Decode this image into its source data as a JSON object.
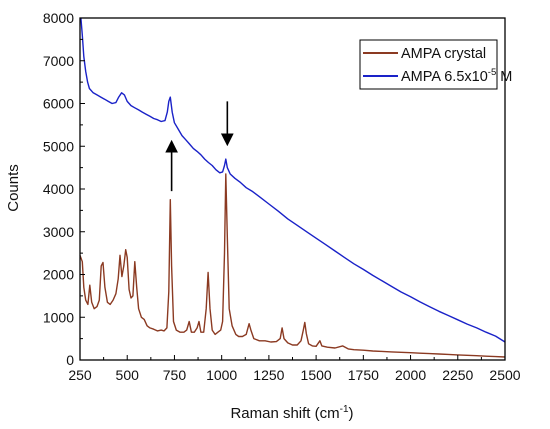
{
  "chart_data": {
    "type": "line",
    "title": "",
    "xlabel": {
      "base": "Raman shift (cm",
      "sup": "-1",
      "tail": ")"
    },
    "ylabel": "Counts",
    "xlim": [
      250,
      2500
    ],
    "ylim": [
      0,
      8000
    ],
    "x_ticks": [
      250,
      500,
      750,
      1000,
      1250,
      1500,
      1750,
      2000,
      2250,
      2500
    ],
    "y_ticks": [
      0,
      1000,
      2000,
      3000,
      4000,
      5000,
      6000,
      7000,
      8000
    ],
    "grid": false,
    "legend_position": "top-right",
    "legend": [
      {
        "series": "crystal",
        "text": "AMPA crystal"
      },
      {
        "series": "solution",
        "text_before": "AMPA 6.5x10",
        "sup": "-5",
        "text_after": " M"
      }
    ],
    "series": [
      {
        "name": "AMPA crystal",
        "key": "crystal",
        "color": "#8b3a22",
        "points": [
          [
            250,
            2450
          ],
          [
            262,
            2300
          ],
          [
            270,
            1700
          ],
          [
            280,
            1400
          ],
          [
            292,
            1300
          ],
          [
            302,
            1750
          ],
          [
            312,
            1350
          ],
          [
            325,
            1200
          ],
          [
            340,
            1250
          ],
          [
            352,
            1400
          ],
          [
            362,
            2200
          ],
          [
            372,
            2280
          ],
          [
            382,
            1700
          ],
          [
            395,
            1350
          ],
          [
            410,
            1300
          ],
          [
            425,
            1400
          ],
          [
            440,
            1550
          ],
          [
            452,
            1900
          ],
          [
            462,
            2450
          ],
          [
            472,
            1950
          ],
          [
            482,
            2200
          ],
          [
            492,
            2580
          ],
          [
            500,
            2400
          ],
          [
            510,
            1650
          ],
          [
            520,
            1450
          ],
          [
            530,
            1500
          ],
          [
            540,
            2300
          ],
          [
            550,
            1700
          ],
          [
            560,
            1200
          ],
          [
            575,
            1000
          ],
          [
            590,
            950
          ],
          [
            605,
            800
          ],
          [
            620,
            750
          ],
          [
            640,
            720
          ],
          [
            660,
            680
          ],
          [
            680,
            700
          ],
          [
            695,
            680
          ],
          [
            710,
            750
          ],
          [
            720,
            1600
          ],
          [
            728,
            3750
          ],
          [
            735,
            2200
          ],
          [
            745,
            900
          ],
          [
            760,
            700
          ],
          [
            780,
            650
          ],
          [
            800,
            650
          ],
          [
            815,
            700
          ],
          [
            828,
            900
          ],
          [
            840,
            650
          ],
          [
            855,
            650
          ],
          [
            870,
            750
          ],
          [
            880,
            900
          ],
          [
            890,
            650
          ],
          [
            905,
            650
          ],
          [
            918,
            1200
          ],
          [
            928,
            2050
          ],
          [
            938,
            1200
          ],
          [
            950,
            700
          ],
          [
            965,
            600
          ],
          [
            980,
            650
          ],
          [
            995,
            700
          ],
          [
            1005,
            900
          ],
          [
            1015,
            2500
          ],
          [
            1022,
            4350
          ],
          [
            1030,
            2900
          ],
          [
            1040,
            1200
          ],
          [
            1055,
            800
          ],
          [
            1075,
            600
          ],
          [
            1090,
            550
          ],
          [
            1110,
            550
          ],
          [
            1130,
            600
          ],
          [
            1145,
            850
          ],
          [
            1155,
            700
          ],
          [
            1170,
            500
          ],
          [
            1200,
            450
          ],
          [
            1230,
            450
          ],
          [
            1260,
            420
          ],
          [
            1290,
            430
          ],
          [
            1310,
            500
          ],
          [
            1320,
            750
          ],
          [
            1330,
            500
          ],
          [
            1350,
            400
          ],
          [
            1375,
            350
          ],
          [
            1400,
            350
          ],
          [
            1420,
            450
          ],
          [
            1432,
            700
          ],
          [
            1440,
            880
          ],
          [
            1448,
            620
          ],
          [
            1460,
            380
          ],
          [
            1480,
            330
          ],
          [
            1500,
            320
          ],
          [
            1520,
            450
          ],
          [
            1530,
            330
          ],
          [
            1560,
            300
          ],
          [
            1600,
            280
          ],
          [
            1640,
            330
          ],
          [
            1670,
            260
          ],
          [
            1700,
            240
          ],
          [
            1750,
            230
          ],
          [
            1800,
            210
          ],
          [
            1850,
            200
          ],
          [
            1900,
            190
          ],
          [
            1950,
            180
          ],
          [
            2000,
            170
          ],
          [
            2050,
            160
          ],
          [
            2100,
            150
          ],
          [
            2150,
            140
          ],
          [
            2200,
            130
          ],
          [
            2250,
            120
          ],
          [
            2300,
            110
          ],
          [
            2350,
            100
          ],
          [
            2400,
            90
          ],
          [
            2450,
            80
          ],
          [
            2500,
            70
          ]
        ]
      },
      {
        "name": "AMPA 6.5x10-5 M",
        "key": "solution",
        "color": "#1a22c8",
        "points": [
          [
            255,
            8000
          ],
          [
            262,
            7600
          ],
          [
            270,
            7100
          ],
          [
            280,
            6750
          ],
          [
            290,
            6500
          ],
          [
            300,
            6350
          ],
          [
            320,
            6250
          ],
          [
            340,
            6200
          ],
          [
            360,
            6150
          ],
          [
            380,
            6100
          ],
          [
            400,
            6050
          ],
          [
            420,
            6000
          ],
          [
            440,
            6020
          ],
          [
            455,
            6150
          ],
          [
            470,
            6250
          ],
          [
            485,
            6200
          ],
          [
            500,
            6050
          ],
          [
            520,
            5950
          ],
          [
            540,
            5900
          ],
          [
            560,
            5850
          ],
          [
            580,
            5800
          ],
          [
            600,
            5750
          ],
          [
            620,
            5700
          ],
          [
            640,
            5650
          ],
          [
            660,
            5620
          ],
          [
            680,
            5580
          ],
          [
            700,
            5600
          ],
          [
            712,
            5800
          ],
          [
            720,
            6050
          ],
          [
            728,
            6150
          ],
          [
            738,
            5800
          ],
          [
            750,
            5550
          ],
          [
            770,
            5400
          ],
          [
            790,
            5250
          ],
          [
            810,
            5150
          ],
          [
            830,
            5050
          ],
          [
            850,
            4950
          ],
          [
            870,
            4880
          ],
          [
            890,
            4800
          ],
          [
            910,
            4700
          ],
          [
            930,
            4620
          ],
          [
            950,
            4550
          ],
          [
            970,
            4450
          ],
          [
            990,
            4380
          ],
          [
            1005,
            4400
          ],
          [
            1015,
            4550
          ],
          [
            1022,
            4700
          ],
          [
            1030,
            4500
          ],
          [
            1045,
            4350
          ],
          [
            1070,
            4250
          ],
          [
            1100,
            4150
          ],
          [
            1130,
            4030
          ],
          [
            1160,
            3950
          ],
          [
            1200,
            3820
          ],
          [
            1250,
            3650
          ],
          [
            1300,
            3480
          ],
          [
            1350,
            3300
          ],
          [
            1400,
            3150
          ],
          [
            1450,
            3000
          ],
          [
            1500,
            2850
          ],
          [
            1550,
            2700
          ],
          [
            1600,
            2550
          ],
          [
            1650,
            2400
          ],
          [
            1700,
            2250
          ],
          [
            1750,
            2120
          ],
          [
            1800,
            1980
          ],
          [
            1850,
            1850
          ],
          [
            1900,
            1720
          ],
          [
            1950,
            1590
          ],
          [
            2000,
            1480
          ],
          [
            2050,
            1360
          ],
          [
            2100,
            1250
          ],
          [
            2150,
            1140
          ],
          [
            2200,
            1040
          ],
          [
            2250,
            940
          ],
          [
            2300,
            840
          ],
          [
            2350,
            750
          ],
          [
            2400,
            650
          ],
          [
            2450,
            560
          ],
          [
            2500,
            420
          ]
        ]
      }
    ],
    "annotations": [
      {
        "type": "arrow",
        "direction": "up",
        "x": 735,
        "y_from": 3950,
        "y_to": 5000
      },
      {
        "type": "arrow",
        "direction": "down",
        "x": 1030,
        "y_from": 6050,
        "y_to": 5150
      }
    ]
  }
}
